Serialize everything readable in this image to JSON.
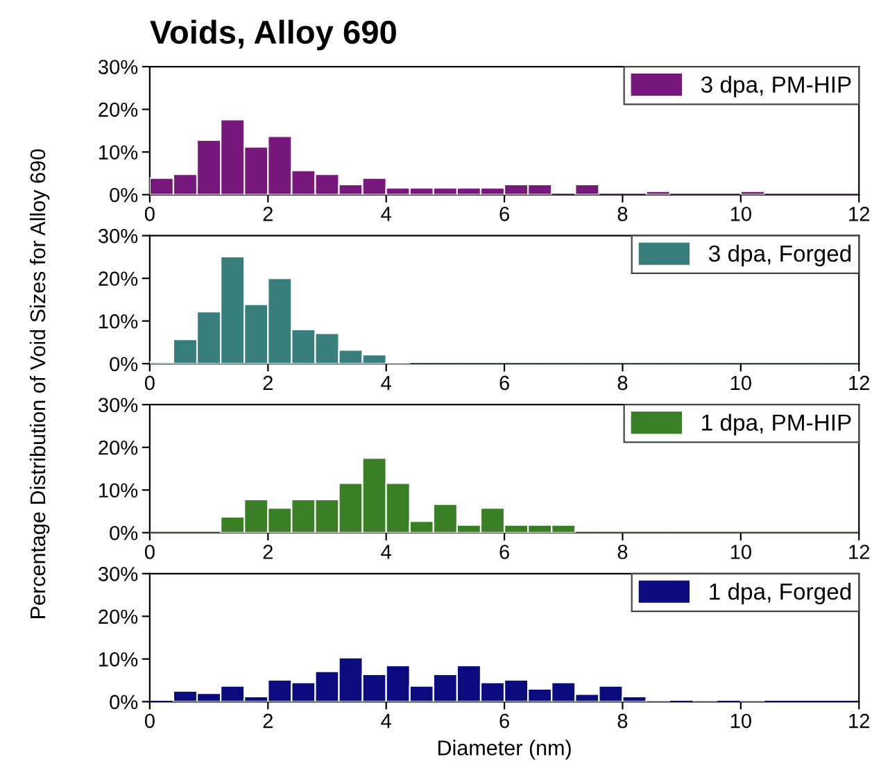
{
  "chart_data": [
    {
      "type": "histogram",
      "title": "Voids, Alloy 690",
      "ylabel": "Percentage Distribution of Void Sizes for Alloy 690",
      "bins": [
        0,
        0.4,
        0.8,
        1.2,
        1.6,
        2.0,
        2.4,
        2.8,
        3.2,
        3.6,
        4.0,
        4.4,
        4.8,
        5.2,
        5.6,
        6.0,
        6.4,
        6.8,
        7.2,
        7.6,
        8.0,
        8.4,
        8.8,
        9.2,
        9.6,
        10.0,
        10.4,
        10.8,
        11.2,
        11.6,
        12.0
      ],
      "series": [
        {
          "name": "3 dpa, PM-HIP",
          "color": "#78187c",
          "values": [
            3.9,
            4.8,
            12.8,
            17.6,
            11.2,
            13.7,
            5.7,
            4.8,
            2.4,
            3.9,
            1.6,
            1.6,
            1.6,
            1.6,
            1.6,
            2.4,
            2.4,
            0,
            2.4,
            0,
            0,
            0.8,
            0,
            0,
            0,
            0.8,
            0,
            0,
            0,
            0
          ]
        }
      ],
      "xlim": [
        0,
        12
      ],
      "xticks": [
        0,
        2,
        4,
        6,
        8,
        10,
        12
      ],
      "ylim": [
        0,
        30
      ],
      "yticks": [
        {
          "value": 0,
          "label": "0%"
        },
        {
          "value": 10,
          "label": "10%"
        },
        {
          "value": 20,
          "label": "20%"
        },
        {
          "value": 30,
          "label": "30%"
        }
      ],
      "legend": "top right",
      "grid": false
    },
    {
      "type": "histogram",
      "bins": [
        0,
        0.4,
        0.8,
        1.2,
        1.6,
        2.0,
        2.4,
        2.8,
        3.2,
        3.6,
        4.0,
        4.4,
        4.8,
        5.2,
        5.6,
        6.0,
        6.4,
        6.8,
        7.2,
        7.6,
        8.0,
        8.4,
        8.8,
        9.2,
        9.6,
        10.0,
        10.4,
        10.8,
        11.2,
        11.6,
        12.0
      ],
      "series": [
        {
          "name": "3 dpa, Forged",
          "color": "#377e7c",
          "values": [
            0.4,
            5.7,
            12.2,
            25.1,
            13.9,
            20.0,
            8.0,
            7.1,
            3.2,
            2.1,
            0.3,
            0,
            0,
            0,
            0,
            0,
            0,
            0,
            0,
            0,
            0,
            0,
            0,
            0,
            0,
            0,
            0,
            0,
            0,
            0
          ]
        }
      ],
      "xlim": [
        0,
        12
      ],
      "xticks": [
        0,
        2,
        4,
        6,
        8,
        10,
        12
      ],
      "ylim": [
        0,
        30
      ],
      "yticks": [
        {
          "value": 0,
          "label": "0%"
        },
        {
          "value": 10,
          "label": "10%"
        },
        {
          "value": 20,
          "label": "20%"
        },
        {
          "value": 30,
          "label": "30%"
        }
      ],
      "legend": "top right",
      "grid": false
    },
    {
      "type": "histogram",
      "bins": [
        0,
        0.4,
        0.8,
        1.2,
        1.6,
        2.0,
        2.4,
        2.8,
        3.2,
        3.6,
        4.0,
        4.4,
        4.8,
        5.2,
        5.6,
        6.0,
        6.4,
        6.8,
        7.2,
        7.6,
        8.0,
        8.4,
        8.8,
        9.2,
        9.6,
        10.0,
        10.4,
        10.8,
        11.2,
        11.6,
        12.0
      ],
      "series": [
        {
          "name": "1 dpa, PM-HIP",
          "color": "#3a7e25",
          "values": [
            0,
            0,
            0,
            3.7,
            7.8,
            5.8,
            7.8,
            7.8,
            11.6,
            17.5,
            11.6,
            2.7,
            6.7,
            1.8,
            5.8,
            1.8,
            1.8,
            1.8,
            0,
            0,
            0,
            0,
            0,
            0,
            0,
            0,
            0,
            0,
            0,
            0
          ]
        }
      ],
      "xlim": [
        0,
        12
      ],
      "xticks": [
        0,
        2,
        4,
        6,
        8,
        10,
        12
      ],
      "ylim": [
        0,
        30
      ],
      "yticks": [
        {
          "value": 0,
          "label": "0%"
        },
        {
          "value": 10,
          "label": "10%"
        },
        {
          "value": 20,
          "label": "20%"
        },
        {
          "value": 30,
          "label": "30%"
        }
      ],
      "legend": "top right",
      "grid": false
    },
    {
      "type": "histogram",
      "xlabel": "Diameter (nm)",
      "bins": [
        0,
        0.4,
        0.8,
        1.2,
        1.6,
        2.0,
        2.4,
        2.8,
        3.2,
        3.6,
        4.0,
        4.4,
        4.8,
        5.2,
        5.6,
        6.0,
        6.4,
        6.8,
        7.2,
        7.6,
        8.0,
        8.4,
        8.8,
        9.2,
        9.6,
        10.0,
        10.4,
        10.8,
        11.2,
        11.6,
        12.0
      ],
      "series": [
        {
          "name": "1 dpa, Forged",
          "color": "#0b0b80",
          "values": [
            0,
            2.5,
            2.0,
            3.7,
            1.2,
            5.1,
            4.5,
            7.1,
            10.3,
            6.4,
            8.5,
            3.7,
            6.4,
            8.5,
            4.5,
            5.1,
            3.0,
            4.5,
            1.8,
            3.7,
            1.2,
            0.4,
            0,
            0.4,
            0,
            0.4,
            0,
            0,
            0,
            0
          ]
        }
      ],
      "xlim": [
        0,
        12
      ],
      "xticks": [
        0,
        2,
        4,
        6,
        8,
        10,
        12
      ],
      "ylim": [
        0,
        30
      ],
      "yticks": [
        {
          "value": 0,
          "label": "0%"
        },
        {
          "value": 10,
          "label": "10%"
        },
        {
          "value": 20,
          "label": "20%"
        },
        {
          "value": 30,
          "label": "30%"
        }
      ],
      "legend": "top right",
      "grid": false
    }
  ]
}
